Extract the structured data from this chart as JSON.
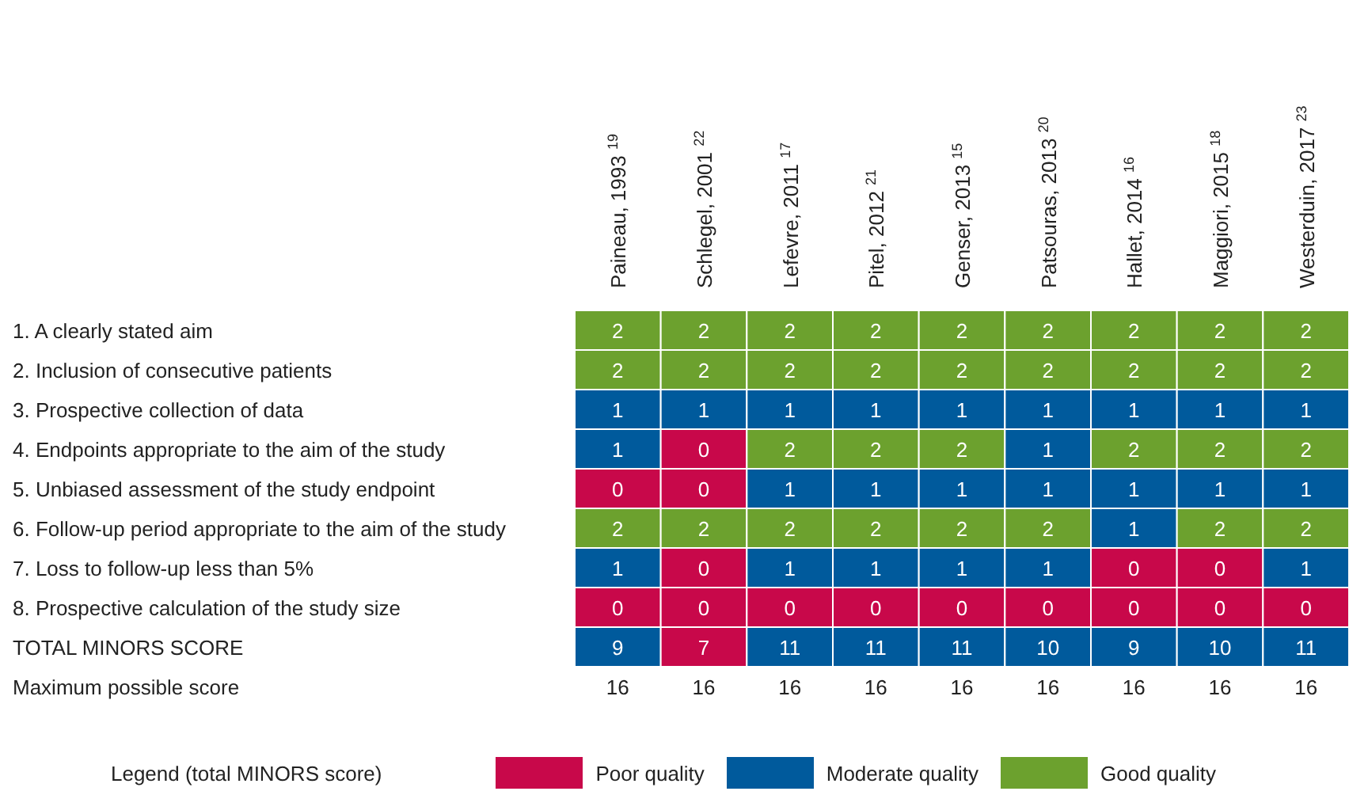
{
  "chart_data": [
    {
      "type": "heatmap",
      "categories": [
        "Paineau, 1993 $^{19}$",
        "Schlegel, 2001 $^{22}$",
        "Lefevre, 2011 $^{17}$",
        "Pitel, 2012 $^{21}$",
        "Genser, 2013 $^{15}$",
        "Patsouras, 2013 $^{20}$",
        "Hallet, 2014 $^{16}$",
        "Maggiori, 2015 $^{18}$",
        "Westerduin, 2017 $^{23}$"
      ],
      "y_categories": [
        "1. A clearly stated aim",
        "2. Inclusion of consecutive patients",
        "3. Prospective collection of data",
        "4. Endpoints appropriate to the aim of the study",
        "5. Unbiased assessment of the study endpoint",
        "6. Follow-up period appropriate to the aim of the study",
        "7. Loss to follow-up less than 5%",
        "8. Prospective calculation of the study size",
        "TOTAL MINORS SCORE",
        "Maximum possible score"
      ],
      "cells": [
        [
          2,
          2,
          2,
          2,
          2,
          2,
          2,
          2,
          2
        ],
        [
          2,
          2,
          2,
          2,
          2,
          2,
          2,
          2,
          2
        ],
        [
          1,
          1,
          1,
          1,
          1,
          1,
          1,
          1,
          1
        ],
        [
          1,
          0,
          2,
          2,
          2,
          1,
          2,
          2,
          2
        ],
        [
          0,
          0,
          1,
          1,
          1,
          1,
          1,
          1,
          1
        ],
        [
          2,
          2,
          2,
          2,
          2,
          2,
          1,
          2,
          2
        ],
        [
          1,
          0,
          1,
          1,
          1,
          1,
          0,
          0,
          1
        ],
        [
          0,
          0,
          0,
          0,
          0,
          0,
          0,
          0,
          0
        ],
        [
          9,
          7,
          11,
          11,
          11,
          10,
          9,
          10,
          11
        ],
        [
          16,
          16,
          16,
          16,
          16,
          16,
          16,
          16,
          16
        ]
      ],
      "colors": [
        [
          "#6ca12e",
          "#6ca12e",
          "#6ca12e",
          "#6ca12e",
          "#6ca12e",
          "#6ca12e",
          "#6ca12e",
          "#6ca12e",
          "#6ca12e"
        ],
        [
          "#6ca12e",
          "#6ca12e",
          "#6ca12e",
          "#6ca12e",
          "#6ca12e",
          "#6ca12e",
          "#6ca12e",
          "#6ca12e",
          "#6ca12e"
        ],
        [
          "#005a9c",
          "#005a9c",
          "#005a9c",
          "#005a9c",
          "#005a9c",
          "#005a9c",
          "#005a9c",
          "#005a9c",
          "#005a9c"
        ],
        [
          "#005a9c",
          "#c8084a",
          "#6ca12e",
          "#6ca12e",
          "#6ca12e",
          "#005a9c",
          "#6ca12e",
          "#6ca12e",
          "#6ca12e"
        ],
        [
          "#c8084a",
          "#c8084a",
          "#005a9c",
          "#005a9c",
          "#005a9c",
          "#005a9c",
          "#005a9c",
          "#005a9c",
          "#005a9c"
        ],
        [
          "#6ca12e",
          "#6ca12e",
          "#6ca12e",
          "#6ca12e",
          "#6ca12e",
          "#6ca12e",
          "#005a9c",
          "#6ca12e",
          "#6ca12e"
        ],
        [
          "#005a9c",
          "#c8084a",
          "#005a9c",
          "#005a9c",
          "#005a9c",
          "#005a9c",
          "#c8084a",
          "#c8084a",
          "#005a9c"
        ],
        [
          "#c8084a",
          "#c8084a",
          "#c8084a",
          "#c8084a",
          "#c8084a",
          "#c8084a",
          "#c8084a",
          "#c8084a",
          "#c8084a"
        ],
        [
          "#005a9c",
          "#c8084a",
          "#005a9c",
          "#005a9c",
          "#005a9c",
          "#005a9c",
          "#005a9c",
          "#005a9c",
          "#005a9c"
        ],
        [
          null,
          null,
          null,
          null,
          null,
          null,
          null,
          null,
          null
        ]
      ],
      "data_labels": true
    },
    {
      "type": "other",
      "legend_title": "Legend (total MINORS score)",
      "categories": [
        "Poor quality",
        "Moderate quality",
        "Good quality"
      ],
      "colors": [
        "#c8084a",
        "#005a9c",
        "#6ca12e"
      ]
    }
  ]
}
